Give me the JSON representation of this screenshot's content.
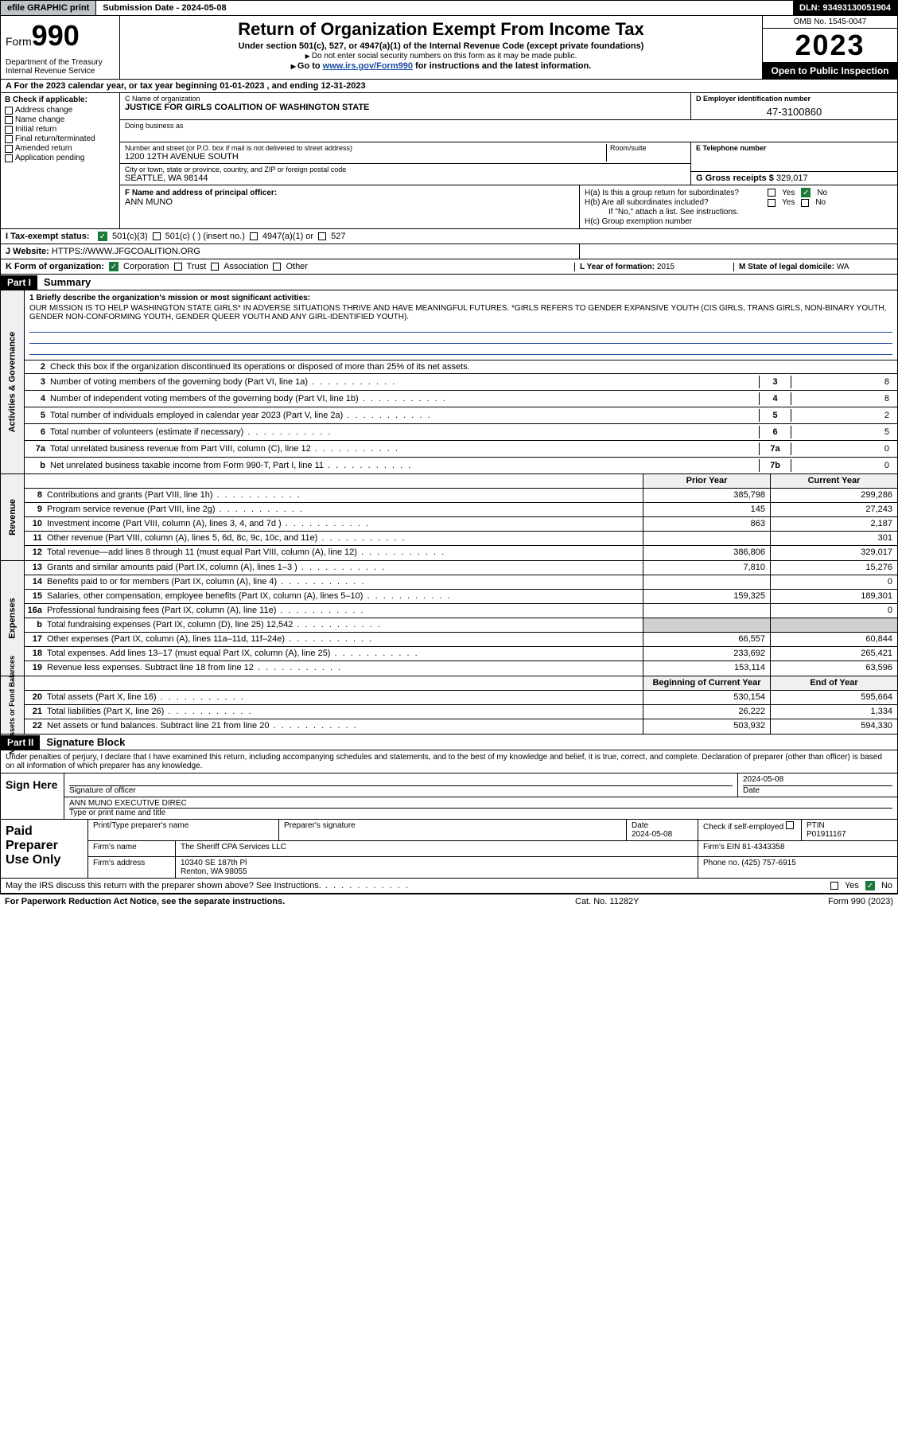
{
  "topbar": {
    "efile": "efile GRAPHIC print",
    "submission": "Submission Date - 2024-05-08",
    "dln": "DLN: 93493130051904"
  },
  "header": {
    "form_label": "Form",
    "form_num": "990",
    "dept": "Department of the Treasury",
    "irs": "Internal Revenue Service",
    "title": "Return of Organization Exempt From Income Tax",
    "sub1": "Under section 501(c), 527, or 4947(a)(1) of the Internal Revenue Code (except private foundations)",
    "sub2": "Do not enter social security numbers on this form as it may be made public.",
    "goto_prefix": "Go to ",
    "goto_link": "www.irs.gov/Form990",
    "goto_suffix": " for instructions and the latest information.",
    "omb": "OMB No. 1545-0047",
    "year": "2023",
    "open": "Open to Public Inspection"
  },
  "row_a": "A For the 2023 calendar year, or tax year beginning 01-01-2023   , and ending 12-31-2023",
  "col_b": {
    "hdr": "B Check if applicable:",
    "opts": [
      "Address change",
      "Name change",
      "Initial return",
      "Final return/terminated",
      "Amended return",
      "Application pending"
    ]
  },
  "org": {
    "c_label": "C Name of organization",
    "name": "JUSTICE FOR GIRLS COALITION OF WASHINGTON STATE",
    "dba_label": "Doing business as",
    "street_label": "Number and street (or P.O. box if mail is not delivered to street address)",
    "suite_label": "Room/suite",
    "street": "1200 12TH AVENUE SOUTH",
    "city_label": "City or town, state or province, country, and ZIP or foreign postal code",
    "city": "SEATTLE, WA  98144"
  },
  "d": {
    "label": "D Employer identification number",
    "val": "47-3100860"
  },
  "e": {
    "label": "E Telephone number",
    "val": ""
  },
  "g": {
    "label": "G Gross receipts $",
    "val": "329,017"
  },
  "f": {
    "label": "F Name and address of principal officer:",
    "name": "ANN MUNO"
  },
  "h": {
    "a": "H(a)  Is this a group return for subordinates?",
    "b": "H(b)  Are all subordinates included?",
    "note": "If \"No,\" attach a list. See instructions.",
    "c": "H(c)  Group exemption number",
    "yes": "Yes",
    "no": "No"
  },
  "i": {
    "label": "I    Tax-exempt status:",
    "c3": "501(c)(3)",
    "c": "501(c) (  ) (insert no.)",
    "a1": "4947(a)(1) or",
    "527": "527"
  },
  "j": {
    "label": "J    Website:",
    "val": "HTTPS://WWW.JFGCOALITION.ORG"
  },
  "k": {
    "label": "K Form of organization:",
    "corp": "Corporation",
    "trust": "Trust",
    "assoc": "Association",
    "other": "Other"
  },
  "l": {
    "label": "L Year of formation:",
    "val": "2015"
  },
  "m": {
    "label": "M State of legal domicile:",
    "val": "WA"
  },
  "part1": {
    "num": "Part I",
    "title": "Summary"
  },
  "mission": {
    "q": "1  Briefly describe the organization's mission or most significant activities:",
    "text": "OUR MISSION IS TO HELP WASHINGTON STATE GIRLS* IN ADVERSE SITUATIONS THRIVE AND HAVE MEANINGFUL FUTURES. *GIRLS REFERS TO GENDER EXPANSIVE YOUTH (CIS GIRLS, TRANS GIRLS, NON-BINARY YOUTH, GENDER NON-CONFORMING YOUTH, GENDER QUEER YOUTH AND ANY GIRL-IDENTIFIED YOUTH)."
  },
  "gov": {
    "tab": "Activities & Governance",
    "l2": "Check this box        if the organization discontinued its operations or disposed of more than 25% of its net assets.",
    "lines": [
      {
        "n": "3",
        "t": "Number of voting members of the governing body (Part VI, line 1a)",
        "b": "3",
        "v": "8"
      },
      {
        "n": "4",
        "t": "Number of independent voting members of the governing body (Part VI, line 1b)",
        "b": "4",
        "v": "8"
      },
      {
        "n": "5",
        "t": "Total number of individuals employed in calendar year 2023 (Part V, line 2a)",
        "b": "5",
        "v": "2"
      },
      {
        "n": "6",
        "t": "Total number of volunteers (estimate if necessary)",
        "b": "6",
        "v": "5"
      },
      {
        "n": "7a",
        "t": "Total unrelated business revenue from Part VIII, column (C), line 12",
        "b": "7a",
        "v": "0"
      },
      {
        "n": "b",
        "t": "Net unrelated business taxable income from Form 990-T, Part I, line 11",
        "b": "7b",
        "v": "0"
      }
    ]
  },
  "rev": {
    "tab": "Revenue",
    "hdr_prior": "Prior Year",
    "hdr_curr": "Current Year",
    "lines": [
      {
        "n": "8",
        "t": "Contributions and grants (Part VIII, line 1h)",
        "p": "385,798",
        "c": "299,286"
      },
      {
        "n": "9",
        "t": "Program service revenue (Part VIII, line 2g)",
        "p": "145",
        "c": "27,243"
      },
      {
        "n": "10",
        "t": "Investment income (Part VIII, column (A), lines 3, 4, and 7d )",
        "p": "863",
        "c": "2,187"
      },
      {
        "n": "11",
        "t": "Other revenue (Part VIII, column (A), lines 5, 6d, 8c, 9c, 10c, and 11e)",
        "p": "",
        "c": "301"
      },
      {
        "n": "12",
        "t": "Total revenue—add lines 8 through 11 (must equal Part VIII, column (A), line 12)",
        "p": "386,806",
        "c": "329,017"
      }
    ]
  },
  "exp": {
    "tab": "Expenses",
    "lines": [
      {
        "n": "13",
        "t": "Grants and similar amounts paid (Part IX, column (A), lines 1–3 )",
        "p": "7,810",
        "c": "15,276"
      },
      {
        "n": "14",
        "t": "Benefits paid to or for members (Part IX, column (A), line 4)",
        "p": "",
        "c": "0"
      },
      {
        "n": "15",
        "t": "Salaries, other compensation, employee benefits (Part IX, column (A), lines 5–10)",
        "p": "159,325",
        "c": "189,301"
      },
      {
        "n": "16a",
        "t": "Professional fundraising fees (Part IX, column (A), line 11e)",
        "p": "",
        "c": "0"
      },
      {
        "n": "b",
        "t": "Total fundraising expenses (Part IX, column (D), line 25) 12,542",
        "p": "shaded",
        "c": "shaded"
      },
      {
        "n": "17",
        "t": "Other expenses (Part IX, column (A), lines 11a–11d, 11f–24e)",
        "p": "66,557",
        "c": "60,844"
      },
      {
        "n": "18",
        "t": "Total expenses. Add lines 13–17 (must equal Part IX, column (A), line 25)",
        "p": "233,692",
        "c": "265,421"
      },
      {
        "n": "19",
        "t": "Revenue less expenses. Subtract line 18 from line 12",
        "p": "153,114",
        "c": "63,596"
      }
    ]
  },
  "net": {
    "tab": "Net Assets or Fund Balances",
    "hdr_beg": "Beginning of Current Year",
    "hdr_end": "End of Year",
    "lines": [
      {
        "n": "20",
        "t": "Total assets (Part X, line 16)",
        "p": "530,154",
        "c": "595,664"
      },
      {
        "n": "21",
        "t": "Total liabilities (Part X, line 26)",
        "p": "26,222",
        "c": "1,334"
      },
      {
        "n": "22",
        "t": "Net assets or fund balances. Subtract line 21 from line 20",
        "p": "503,932",
        "c": "594,330"
      }
    ]
  },
  "part2": {
    "num": "Part II",
    "title": "Signature Block"
  },
  "sig": {
    "intro": "Under penalties of perjury, I declare that I have examined this return, including accompanying schedules and statements, and to the best of my knowledge and belief, it is true, correct, and complete. Declaration of preparer (other than officer) is based on all information of which preparer has any knowledge.",
    "left": "Sign Here",
    "officer_label": "Signature of officer",
    "date_label": "Date",
    "date": "2024-05-08",
    "name": "ANN MUNO  EXECUTIVE DIREC",
    "type_label": "Type or print name and title"
  },
  "prep": {
    "left": "Paid Preparer Use Only",
    "name_label": "Print/Type preparer's name",
    "sig_label": "Preparer's signature",
    "date_label": "Date",
    "date": "2024-05-08",
    "check_label": "Check        if self-employed",
    "ptin_label": "PTIN",
    "ptin": "P01911167",
    "firm_name_label": "Firm's name",
    "firm_name": "The Sheriff CPA Services LLC",
    "firm_ein_label": "Firm's EIN",
    "firm_ein": "81-4343358",
    "firm_addr_label": "Firm's address",
    "firm_addr1": "10340 SE 187th Pl",
    "firm_addr2": "Renton, WA  98055",
    "phone_label": "Phone no.",
    "phone": "(425) 757-6915"
  },
  "discuss": {
    "text": "May the IRS discuss this return with the preparer shown above? See Instructions.",
    "yes": "Yes",
    "no": "No"
  },
  "footer": {
    "left": "For Paperwork Reduction Act Notice, see the separate instructions.",
    "mid": "Cat. No. 11282Y",
    "right": "Form 990 (2023)"
  }
}
